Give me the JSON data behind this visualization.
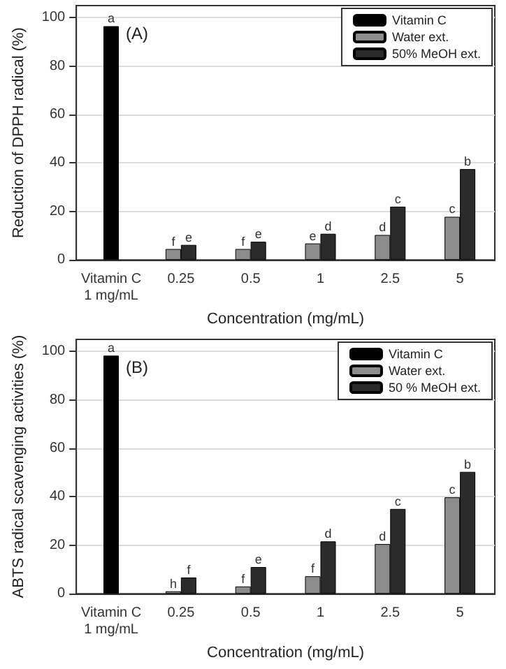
{
  "chart_data": [
    {
      "type": "bar",
      "ylabel": "Reduction of DPPH radical (%)",
      "xlabel": "Concentration (mg/mL)",
      "annotations": [
        "(A)"
      ],
      "categories": [
        "Vitamin C\n1 mg/mL",
        "0.25",
        "0.5",
        "1",
        "2.5",
        "5"
      ],
      "series": [
        {
          "name": "Vitamin C",
          "color": "#000000",
          "values": [
            96.5,
            null,
            null,
            null,
            null,
            null
          ],
          "value_labels": [
            "a",
            null,
            null,
            null,
            null,
            null
          ]
        },
        {
          "name": "Water ext.",
          "color": "#8c8c8c",
          "values": [
            null,
            4.5,
            4.5,
            6.8,
            10.3,
            17.8
          ],
          "value_labels": [
            null,
            "f",
            "f",
            "e",
            "d",
            "c"
          ]
        },
        {
          "name": "50% MeOH ext.",
          "color": "#2b2b2b",
          "values": [
            null,
            6.2,
            7.5,
            10.8,
            22,
            37.5
          ],
          "value_labels": [
            null,
            "e",
            "e",
            "d",
            "c",
            "b"
          ]
        }
      ],
      "ylim": [
        0,
        105
      ],
      "yticks": [
        0,
        20,
        40,
        60,
        80,
        100
      ],
      "grid": "y",
      "legend": "top right"
    },
    {
      "type": "bar",
      "ylabel": "ABTS radical scavenging activities (%)",
      "xlabel": "Concentration (mg/mL)",
      "annotations": [
        "(B)"
      ],
      "categories": [
        "Vitamin C\n1 mg/mL",
        "0.25",
        "0.5",
        "1",
        "2.5",
        "5"
      ],
      "series": [
        {
          "name": "Vitamin C",
          "color": "#000000",
          "values": [
            98.3,
            null,
            null,
            null,
            null,
            null
          ],
          "value_labels": [
            "a",
            null,
            null,
            null,
            null,
            null
          ]
        },
        {
          "name": "Water ext.",
          "color": "#8c8c8c",
          "values": [
            null,
            1,
            3,
            7.2,
            20.5,
            39.8
          ],
          "value_labels": [
            null,
            "h",
            "f",
            "f",
            "d",
            "c"
          ]
        },
        {
          "name": "50 % MeOH ext.",
          "color": "#2b2b2b",
          "values": [
            null,
            6.7,
            11,
            21.6,
            35,
            50.3
          ],
          "value_labels": [
            null,
            "f",
            "e",
            "d",
            "c",
            "b"
          ]
        }
      ],
      "ylim": [
        0,
        105
      ],
      "yticks": [
        0,
        20,
        40,
        60,
        80,
        100
      ],
      "grid": "y",
      "legend": "top right"
    }
  ]
}
